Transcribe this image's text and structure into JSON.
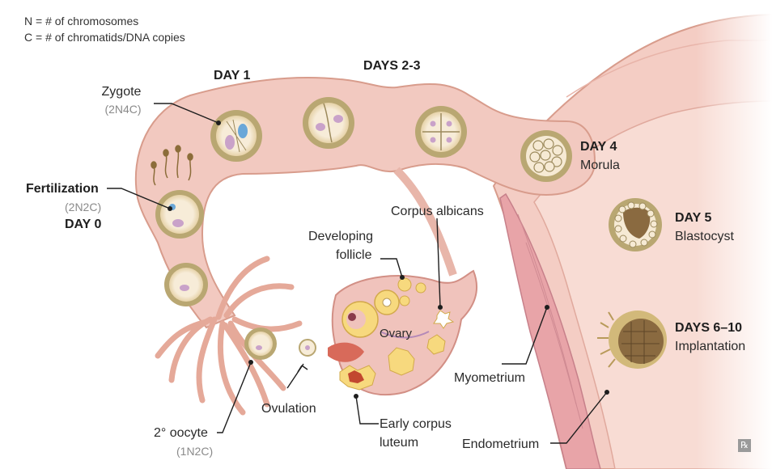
{
  "legend": {
    "line1": "N = # of chromosomes",
    "line2": "C = # of chromatids/DNA copies"
  },
  "labels": {
    "day1": "DAY 1",
    "days23": "DAYS 2-3",
    "zygote": "Zygote",
    "zygote_formula": "(2N4C)",
    "fertilization": "Fertilization",
    "fertilization_formula": "(2N2C)",
    "day0": "DAY 0",
    "day4": "DAY 4",
    "morula": "Morula",
    "day5": "DAY 5",
    "blastocyst": "Blastocyst",
    "days610": "DAYS 6–10",
    "implantation": "Implantation",
    "corpus_albicans": "Corpus albicans",
    "developing_follicle_1": "Developing",
    "developing_follicle_2": "follicle",
    "ovary": "Ovary",
    "myometrium": "Myometrium",
    "endometrium": "Endometrium",
    "ovulation": "Ovulation",
    "early_corpus_1": "Early corpus",
    "early_corpus_2": "luteum",
    "oocyte": "2° oocyte",
    "oocyte_formula": "(1N2C)",
    "rx_logo": "℞"
  },
  "colors": {
    "tube": "#f2c9c0",
    "tube_outline": "#d89c8c",
    "uterus": "#f4cdc4",
    "myometrium": "#e8a4a8",
    "zona": "#b9a772",
    "cell": "#f6ead4",
    "nucleus": "#c9a2c9",
    "ovary": "#f0c3bc",
    "follicle": "#f7d97e",
    "leader": "#1e1e1e"
  }
}
